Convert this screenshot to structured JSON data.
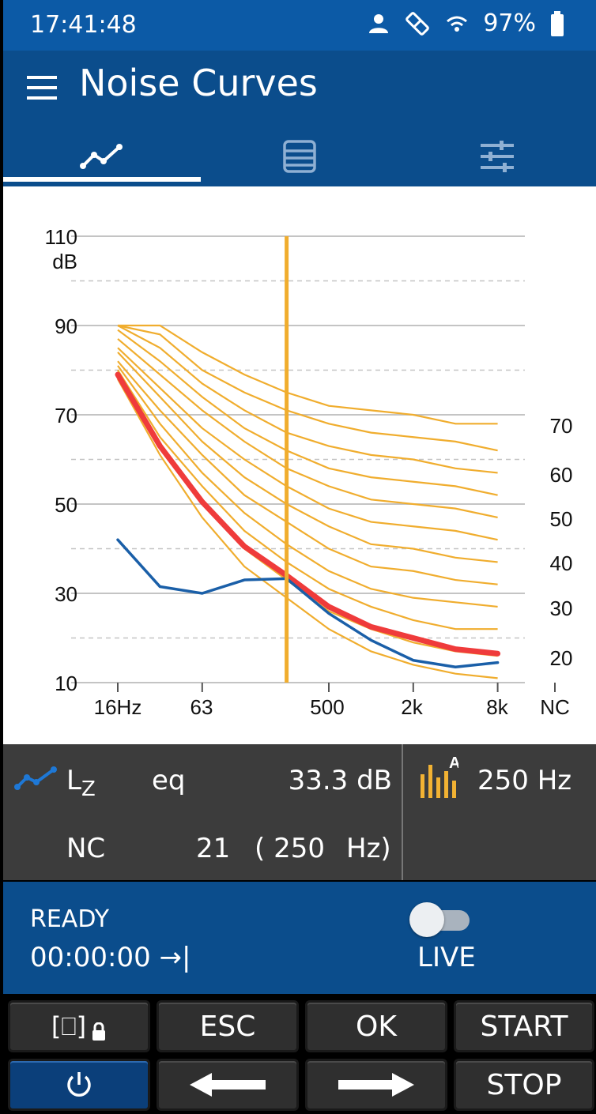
{
  "status_bar": {
    "time": "17:41:48",
    "battery": "97%",
    "icons": [
      "person-icon",
      "satellite-icon",
      "wifi-icon",
      "battery-icon"
    ]
  },
  "app_bar": {
    "title": "Noise Curves",
    "tabs": [
      {
        "icon": "graph-icon",
        "selected": true
      },
      {
        "icon": "table-icon",
        "selected": false
      },
      {
        "icon": "sliders-icon",
        "selected": false
      }
    ]
  },
  "chart": {
    "y_ticks": [
      "110",
      "90",
      "70",
      "50",
      "30",
      "10"
    ],
    "y_unit": "dB",
    "x_ticks": [
      "16Hz",
      "63",
      "500",
      "2k",
      "8k"
    ],
    "x_suffix": "NC",
    "nc_labels": [
      "70",
      "60",
      "50",
      "40",
      "30",
      "20"
    ]
  },
  "chart_data": {
    "type": "line",
    "x": [
      "16",
      "31.5",
      "63",
      "125",
      "250",
      "500",
      "1k",
      "2k",
      "4k",
      "8k"
    ],
    "ylim": [
      10,
      110
    ],
    "grid": true,
    "series": [
      {
        "name": "Lz eq",
        "color": "#1a5fa8",
        "values": [
          42,
          31.5,
          30,
          33,
          33.3,
          25.5,
          19.5,
          15,
          13.5,
          14.5
        ]
      },
      {
        "name": "NC",
        "color": "#ef3b3b",
        "values": [
          79,
          63,
          50.5,
          40.5,
          34,
          27,
          22.5,
          20,
          17.5,
          16.5
        ]
      }
    ],
    "nc_curves": [
      {
        "nc": "70",
        "values": [
          90,
          90,
          84,
          79,
          75,
          72,
          71,
          70,
          68,
          68
        ]
      },
      {
        "nc": "65",
        "values": [
          90,
          88,
          80,
          75,
          71,
          68,
          66,
          65,
          64,
          62
        ]
      },
      {
        "nc": "60",
        "values": [
          90,
          85,
          77,
          71,
          66,
          63,
          61,
          60,
          58,
          57
        ]
      },
      {
        "nc": "55",
        "values": [
          89,
          82,
          74,
          67,
          62,
          58,
          56,
          55,
          54,
          52
        ]
      },
      {
        "nc": "50",
        "values": [
          87,
          79,
          71,
          64,
          58,
          54,
          51,
          50,
          49,
          47
        ]
      },
      {
        "nc": "45",
        "values": [
          85,
          76,
          67,
          60,
          54,
          49,
          46,
          45,
          44,
          42
        ]
      },
      {
        "nc": "40",
        "values": [
          84,
          74,
          64,
          56,
          50,
          45,
          41,
          40,
          38,
          37
        ]
      },
      {
        "nc": "35",
        "values": [
          82,
          71,
          61,
          52,
          46,
          40,
          36,
          35,
          33,
          32
        ]
      },
      {
        "nc": "30",
        "values": [
          81,
          68,
          57,
          48,
          41,
          35,
          31,
          29,
          28,
          27
        ]
      },
      {
        "nc": "25",
        "values": [
          80,
          65,
          54,
          44,
          37,
          31,
          27,
          24,
          22,
          22
        ]
      },
      {
        "nc": "20",
        "values": [
          79,
          63,
          50,
          40,
          33,
          26,
          22,
          19,
          17,
          16
        ]
      },
      {
        "nc": "15",
        "values": [
          78,
          61,
          47,
          36,
          29,
          22,
          17,
          14,
          12,
          11
        ]
      }
    ],
    "cursor_x": "250"
  },
  "readout": {
    "param_name": "L",
    "param_sub": "Z",
    "param_mode": "eq",
    "param_value": "33.3 dB",
    "nc_label": "NC",
    "nc_value": "21",
    "nc_paren_open": "( 250",
    "nc_paren_unit": "Hz)",
    "band": "250 Hz",
    "band_weighting": "A"
  },
  "panel": {
    "state": "READY",
    "elapsed": "00:00:00 →|",
    "live_label": "LIVE",
    "live_on": false
  },
  "keys": {
    "lock_label": "[⎕]",
    "esc": "ESC",
    "ok": "OK",
    "start": "START",
    "stop": "STOP"
  }
}
